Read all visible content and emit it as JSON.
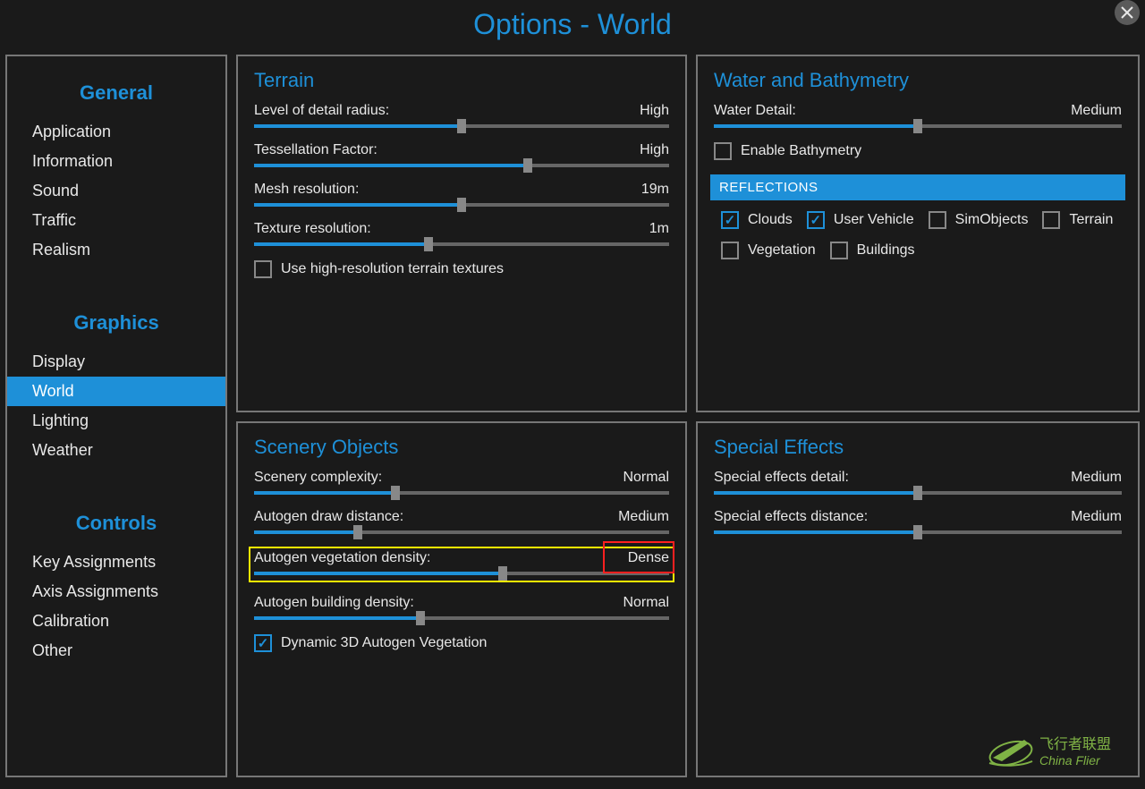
{
  "window": {
    "title": "Options - World"
  },
  "sidebar": {
    "sections": [
      {
        "header": "General",
        "items": [
          {
            "label": "Application",
            "key": "application",
            "active": false
          },
          {
            "label": "Information",
            "key": "information",
            "active": false
          },
          {
            "label": "Sound",
            "key": "sound",
            "active": false
          },
          {
            "label": "Traffic",
            "key": "traffic",
            "active": false
          },
          {
            "label": "Realism",
            "key": "realism",
            "active": false
          }
        ]
      },
      {
        "header": "Graphics",
        "items": [
          {
            "label": "Display",
            "key": "display",
            "active": false
          },
          {
            "label": "World",
            "key": "world",
            "active": true
          },
          {
            "label": "Lighting",
            "key": "lighting",
            "active": false
          },
          {
            "label": "Weather",
            "key": "weather",
            "active": false
          }
        ]
      },
      {
        "header": "Controls",
        "items": [
          {
            "label": "Key Assignments",
            "key": "key-assignments",
            "active": false
          },
          {
            "label": "Axis Assignments",
            "key": "axis-assignments",
            "active": false
          },
          {
            "label": "Calibration",
            "key": "calibration",
            "active": false
          },
          {
            "label": "Other",
            "key": "other",
            "active": false
          }
        ]
      }
    ]
  },
  "panels": {
    "terrain": {
      "title": "Terrain",
      "sliders": [
        {
          "label": "Level of detail radius:",
          "value": "High",
          "pct": 50
        },
        {
          "label": "Tessellation Factor:",
          "value": "High",
          "pct": 66
        },
        {
          "label": "Mesh resolution:",
          "value": "19m",
          "pct": 50
        },
        {
          "label": "Texture resolution:",
          "value": "1m",
          "pct": 42
        }
      ],
      "checkbox": {
        "label": "Use high-resolution terrain textures",
        "checked": false
      }
    },
    "scenery": {
      "title": "Scenery Objects",
      "sliders": [
        {
          "label": "Scenery complexity:",
          "value": "Normal",
          "pct": 34,
          "hl": "none"
        },
        {
          "label": "Autogen draw distance:",
          "value": "Medium",
          "pct": 25,
          "hl": "none"
        },
        {
          "label": "Autogen vegetation density:",
          "value": "Dense",
          "pct": 60,
          "hl": "yellow-red"
        },
        {
          "label": "Autogen building density:",
          "value": "Normal",
          "pct": 40,
          "hl": "none"
        }
      ],
      "checkbox": {
        "label": "Dynamic 3D Autogen Vegetation",
        "checked": true
      }
    },
    "water": {
      "title": "Water and Bathymetry",
      "sliders": [
        {
          "label": "Water Detail:",
          "value": "Medium",
          "pct": 50
        }
      ],
      "checkbox": {
        "label": "Enable Bathymetry",
        "checked": false
      },
      "section_header": "REFLECTIONS",
      "reflections": [
        {
          "label": "Clouds",
          "checked": true
        },
        {
          "label": "User Vehicle",
          "checked": true
        },
        {
          "label": "SimObjects",
          "checked": false
        },
        {
          "label": "Terrain",
          "checked": false
        },
        {
          "label": "Vegetation",
          "checked": false
        },
        {
          "label": "Buildings",
          "checked": false
        }
      ]
    },
    "special": {
      "title": "Special Effects",
      "sliders": [
        {
          "label": "Special effects detail:",
          "value": "Medium",
          "pct": 50
        },
        {
          "label": "Special effects distance:",
          "value": "Medium",
          "pct": 50
        }
      ]
    }
  },
  "colors": {
    "accent": "#1e90d8",
    "bg": "#1a1a1a",
    "border": "#777777",
    "track": "#666666",
    "thumb": "#888888",
    "text": "#e8e8e8",
    "highlight_yellow": "#ffee00",
    "highlight_red": "#ff2020",
    "watermark": "#8bc34a"
  },
  "watermark": {
    "text_top": "飞行者联盟",
    "text_bottom": "China Flier"
  }
}
